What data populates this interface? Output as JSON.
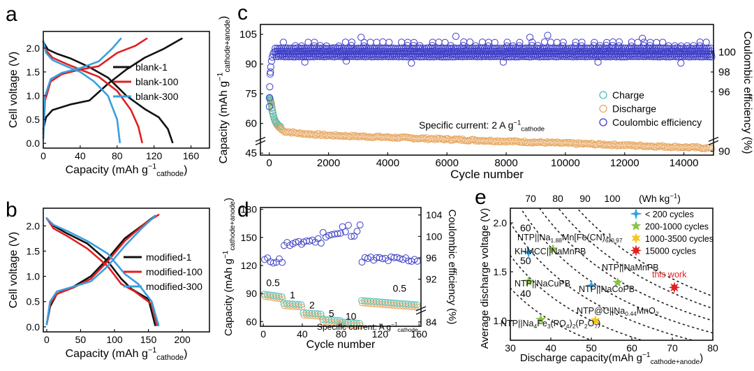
{
  "panel_labels": {
    "a": "a",
    "b": "b",
    "c": "c",
    "d": "d",
    "e": "e"
  },
  "chart_data": [
    {
      "panel": "a",
      "type": "line",
      "xlabel": "Capacity (mAh g",
      "xlabel_sup": "−1",
      "xlabel_sub": "cathode",
      "xlabel_close": ")",
      "ylabel": "Cell voltage (V)",
      "xlim": [
        0,
        180
      ],
      "ylim": [
        -0.1,
        2.35
      ],
      "xticks": [
        "0",
        "40",
        "80",
        "120",
        "160"
      ],
      "xtick_vals": [
        0,
        40,
        80,
        120,
        160
      ],
      "yticks": [
        "0.0",
        "0.5",
        "1.0",
        "1.5",
        "2.0"
      ],
      "ytick_vals": [
        0,
        0.5,
        1.0,
        1.5,
        2.0
      ],
      "legend_position": "right",
      "series": [
        {
          "name": "blank-1",
          "color": "#111111",
          "discharge": [
            [
              0,
              2.13
            ],
            [
              5,
              1.97
            ],
            [
              15,
              1.88
            ],
            [
              30,
              1.78
            ],
            [
              50,
              1.6
            ],
            [
              70,
              1.38
            ],
            [
              90,
              1.0
            ],
            [
              110,
              0.72
            ],
            [
              125,
              0.55
            ],
            [
              135,
              0.3
            ],
            [
              140,
              0.02
            ]
          ],
          "charge": [
            [
              0,
              0.3
            ],
            [
              3,
              0.55
            ],
            [
              10,
              0.7
            ],
            [
              30,
              0.82
            ],
            [
              50,
              0.9
            ],
            [
              70,
              1.25
            ],
            [
              90,
              1.55
            ],
            [
              110,
              1.8
            ],
            [
              130,
              1.98
            ],
            [
              150,
              2.2
            ]
          ]
        },
        {
          "name": "blank-100",
          "color": "#e02020",
          "discharge": [
            [
              0,
              2.13
            ],
            [
              3,
              1.95
            ],
            [
              10,
              1.8
            ],
            [
              25,
              1.67
            ],
            [
              40,
              1.55
            ],
            [
              60,
              1.4
            ],
            [
              80,
              1.1
            ],
            [
              95,
              0.7
            ],
            [
              103,
              0.35
            ],
            [
              107,
              0.02
            ]
          ],
          "charge": [
            [
              0,
              0.2
            ],
            [
              2,
              0.9
            ],
            [
              8,
              1.3
            ],
            [
              20,
              1.45
            ],
            [
              40,
              1.55
            ],
            [
              60,
              1.62
            ],
            [
              80,
              1.9
            ],
            [
              100,
              2.05
            ],
            [
              112,
              2.2
            ]
          ]
        },
        {
          "name": "blank-300",
          "color": "#3a9ee0",
          "discharge": [
            [
              0,
              2.15
            ],
            [
              3,
              1.9
            ],
            [
              10,
              1.75
            ],
            [
              25,
              1.62
            ],
            [
              40,
              1.5
            ],
            [
              55,
              1.3
            ],
            [
              70,
              1.0
            ],
            [
              80,
              0.5
            ],
            [
              83,
              0.02
            ]
          ],
          "charge": [
            [
              0,
              0.1
            ],
            [
              2,
              1.0
            ],
            [
              8,
              1.35
            ],
            [
              20,
              1.48
            ],
            [
              40,
              1.58
            ],
            [
              60,
              1.72
            ],
            [
              75,
              2.0
            ],
            [
              84,
              2.2
            ]
          ]
        }
      ]
    },
    {
      "panel": "b",
      "type": "line",
      "xlabel": "Capacity (mAh g",
      "xlabel_sup": "−1",
      "xlabel_sub": "cathode",
      "xlabel_close": ")",
      "ylabel": "Cell voltage (V)",
      "xlim": [
        -5,
        240
      ],
      "ylim": [
        -0.1,
        2.35
      ],
      "xticks": [
        "0",
        "50",
        "100",
        "150",
        "200"
      ],
      "xtick_vals": [
        0,
        50,
        100,
        150,
        200
      ],
      "yticks": [
        "0.0",
        "0.5",
        "1.0",
        "1.5",
        "2.0"
      ],
      "ytick_vals": [
        0,
        0.5,
        1.0,
        1.5,
        2.0
      ],
      "legend_position": "right",
      "series": [
        {
          "name": "modified-1",
          "color": "#111111",
          "discharge": [
            [
              0,
              2.15
            ],
            [
              10,
              2.0
            ],
            [
              30,
              1.85
            ],
            [
              60,
              1.65
            ],
            [
              90,
              1.3
            ],
            [
              110,
              0.95
            ],
            [
              125,
              0.75
            ],
            [
              150,
              0.55
            ],
            [
              160,
              0.03
            ]
          ],
          "charge": [
            [
              0,
              0.05
            ],
            [
              5,
              0.4
            ],
            [
              15,
              0.65
            ],
            [
              40,
              0.8
            ],
            [
              65,
              1.0
            ],
            [
              90,
              1.35
            ],
            [
              115,
              1.75
            ],
            [
              140,
              2.0
            ],
            [
              160,
              2.2
            ]
          ]
        },
        {
          "name": "modified-100",
          "color": "#e02020",
          "discharge": [
            [
              0,
              2.15
            ],
            [
              10,
              1.95
            ],
            [
              30,
              1.8
            ],
            [
              60,
              1.55
            ],
            [
              90,
              1.2
            ],
            [
              110,
              0.85
            ],
            [
              130,
              0.7
            ],
            [
              155,
              0.45
            ],
            [
              163,
              0.03
            ]
          ],
          "charge": [
            [
              0,
              0.05
            ],
            [
              5,
              0.45
            ],
            [
              15,
              0.65
            ],
            [
              40,
              0.78
            ],
            [
              65,
              0.95
            ],
            [
              90,
              1.3
            ],
            [
              115,
              1.7
            ],
            [
              145,
              2.05
            ],
            [
              165,
              2.22
            ]
          ]
        },
        {
          "name": "modified-300",
          "color": "#3a9ee0",
          "discharge": [
            [
              0,
              2.15
            ],
            [
              10,
              2.02
            ],
            [
              30,
              1.9
            ],
            [
              60,
              1.7
            ],
            [
              90,
              1.45
            ],
            [
              115,
              1.05
            ],
            [
              135,
              0.85
            ],
            [
              155,
              0.5
            ],
            [
              165,
              0.03
            ]
          ],
          "charge": [
            [
              0,
              0.05
            ],
            [
              5,
              0.5
            ],
            [
              15,
              0.7
            ],
            [
              40,
              0.8
            ],
            [
              65,
              0.9
            ],
            [
              90,
              1.2
            ],
            [
              115,
              1.6
            ],
            [
              140,
              1.95
            ],
            [
              160,
              2.2
            ]
          ]
        }
      ]
    },
    {
      "panel": "c",
      "type": "scatter",
      "xlabel": "Cycle number",
      "ylabel": "Capacity (mAh g",
      "ylabel_sup": "−1",
      "ylabel_sub": "cathode+anode",
      "ylabel_close": ")",
      "y2label": "Coulombic efficiency (%)",
      "xlim": [
        -300,
        15000
      ],
      "ylim": [
        44,
        110
      ],
      "y2lim": [
        89.6,
        102.8
      ],
      "xticks": [
        "0",
        "2000",
        "4000",
        "6000",
        "8000",
        "10000",
        "12000",
        "14000"
      ],
      "xtick_vals": [
        0,
        2000,
        4000,
        6000,
        8000,
        10000,
        12000,
        14000
      ],
      "yticks": [
        "45",
        "60",
        "75",
        "90",
        "105"
      ],
      "ytick_vals": [
        45,
        60,
        75,
        90,
        105
      ],
      "y2ticks": [
        "90",
        "96",
        "98",
        "100"
      ],
      "y2tick_vals": [
        90,
        96,
        98,
        100
      ],
      "annotation": "Specific current: 2 A g",
      "annotation_sup": "−1",
      "annotation_sub": "cathode",
      "legend_position": "right",
      "series": [
        {
          "name": "Charge",
          "color": "#4fbfb5"
        },
        {
          "name": "Discharge",
          "color": "#e8a862"
        },
        {
          "name": "Coulombic efficiency",
          "color": "#3d3dc8"
        }
      ],
      "capacity_trend": {
        "x": [
          0,
          50,
          100,
          150,
          200,
          300,
          500,
          1000,
          2000,
          4000,
          6000,
          8000,
          10000,
          12000,
          14000,
          15000
        ],
        "y": [
          72,
          70,
          65,
          62,
          60,
          58,
          56,
          55,
          54,
          53,
          52,
          51,
          50,
          49,
          48,
          47.5
        ]
      },
      "ce_levels": [
        100.4,
        100.1,
        99.8,
        99.55,
        100.65,
        101.0
      ]
    },
    {
      "panel": "d",
      "type": "scatter",
      "xlabel": "Cycle number",
      "ylabel": "Capacity (mAh g",
      "ylabel_sup": "−1",
      "ylabel_sub": "cathode+anode",
      "ylabel_close": ")",
      "y2label": "Coulombic efficiency (%)",
      "xlim": [
        -3,
        162
      ],
      "ylim": [
        55,
        182
      ],
      "y2lim": [
        83.2,
        105.4
      ],
      "xticks": [
        "0",
        "40",
        "80",
        "120",
        "160"
      ],
      "xtick_vals": [
        0,
        40,
        80,
        120,
        160
      ],
      "yticks": [
        "60",
        "90",
        "120",
        "150",
        "180"
      ],
      "ytick_vals": [
        60,
        90,
        120,
        150,
        180
      ],
      "y2ticks": [
        "84",
        "92",
        "96",
        "100",
        "104"
      ],
      "y2tick_vals": [
        84,
        92,
        96,
        100,
        104
      ],
      "annotation": "Specific current: A g",
      "annotation_sup": "−1",
      "annotation_sub": "cathode",
      "rate_labels": [
        {
          "text": "0.5",
          "x": 10,
          "y": 98
        },
        {
          "text": "1",
          "x": 30,
          "y": 85
        },
        {
          "text": "2",
          "x": 50,
          "y": 74
        },
        {
          "text": "5",
          "x": 70,
          "y": 65
        },
        {
          "text": "10",
          "x": 90,
          "y": 62
        },
        {
          "text": "0.5",
          "x": 140,
          "y": 92
        }
      ],
      "steps": [
        {
          "from": 1,
          "to": 20,
          "cap": 84,
          "ce": 95.5
        },
        {
          "from": 21,
          "to": 40,
          "cap": 77,
          "ce": 98.5
        },
        {
          "from": 41,
          "to": 60,
          "cap": 67,
          "ce": 99.2
        },
        {
          "from": 61,
          "to": 80,
          "cap": 60,
          "ce": 100.4
        },
        {
          "from": 81,
          "to": 100,
          "cap": 57,
          "ce": 101.2
        },
        {
          "from": 101,
          "to": 160,
          "cap": 80,
          "ce": 95.7
        }
      ]
    },
    {
      "panel": "e",
      "type": "scatter",
      "xlabel": "Discharge capacity(mAh g",
      "xlabel_sup": "−1",
      "xlabel_sub": "cathode+anode",
      "xlabel_close": ")",
      "ylabel": "Average discharge voltage (V)",
      "xlim": [
        30,
        80
      ],
      "ylim": [
        0.8,
        2.15
      ],
      "xticks": [
        "30",
        "40",
        "50",
        "60",
        "70",
        "80"
      ],
      "xtick_vals": [
        30,
        40,
        50,
        60,
        70,
        80
      ],
      "yticks": [
        "1.0",
        "1.5",
        "2.0"
      ],
      "ytick_vals": [
        1.0,
        1.5,
        2.0
      ],
      "top_labels": [
        "70",
        "80",
        "90",
        "100"
      ],
      "top_unit": "(Wh kg",
      "top_unit_sup": "−1",
      "top_unit_close": ")",
      "left_energy_labels": [
        "60",
        "50",
        "40"
      ],
      "energy_density_lines": [
        40,
        50,
        60,
        70,
        80,
        90,
        100
      ],
      "legend_position": "top-right",
      "legend": [
        {
          "name": "< 200 cycles",
          "color": "#2aa3e8",
          "marker": "star4"
        },
        {
          "name": "200-1000 cycles",
          "color": "#8bc34a",
          "marker": "star5"
        },
        {
          "name": "1000-3500 cycles",
          "color": "#f5c518",
          "marker": "star6"
        },
        {
          "name": "15000 cycles",
          "color": "#e02020",
          "marker": "star8"
        }
      ],
      "points": [
        {
          "x": 34.5,
          "y": 1.7,
          "group": 0,
          "label": "NTP||Na",
          "label_sub1": "1.88",
          "label_mid": "Mn[Fe(CN)",
          "label_sub2": "6",
          "label_end": "]",
          "label_sub3": "0.97"
        },
        {
          "x": 40.5,
          "y": 1.73,
          "group": 1,
          "label": "KHMCC||NaMnPB"
        },
        {
          "x": 34.5,
          "y": 1.4,
          "group": 1,
          "label": "NTP||NaCuPB"
        },
        {
          "x": 50.0,
          "y": 1.36,
          "group": 0,
          "label": "NTP||NaCoPB"
        },
        {
          "x": 56.5,
          "y": 1.39,
          "group": 1,
          "label": "NTP||NaMnPB"
        },
        {
          "x": 51.0,
          "y": 1.0,
          "group": 2,
          "label": "NTP@C||Na",
          "label_sub1": "0.44",
          "label_mid": "MnO",
          "label_sub2": "2"
        },
        {
          "x": 37.5,
          "y": 1.01,
          "group": 1,
          "label": "NTP||Na",
          "label_sub1": "4",
          "label_mid": "Fe",
          "label_sub2": "3",
          "label_end": "(PO",
          "label_sub3": "4",
          "label_end2": ")",
          "label_sub4": "2",
          "label_end3": "(P",
          "label_sub5": "2",
          "label_end4": "O",
          "label_sub6": "7",
          "label_end5": ")"
        },
        {
          "x": 70.5,
          "y": 1.34,
          "group": 3,
          "label": "this work",
          "label_color": "#e02020"
        }
      ]
    }
  ]
}
